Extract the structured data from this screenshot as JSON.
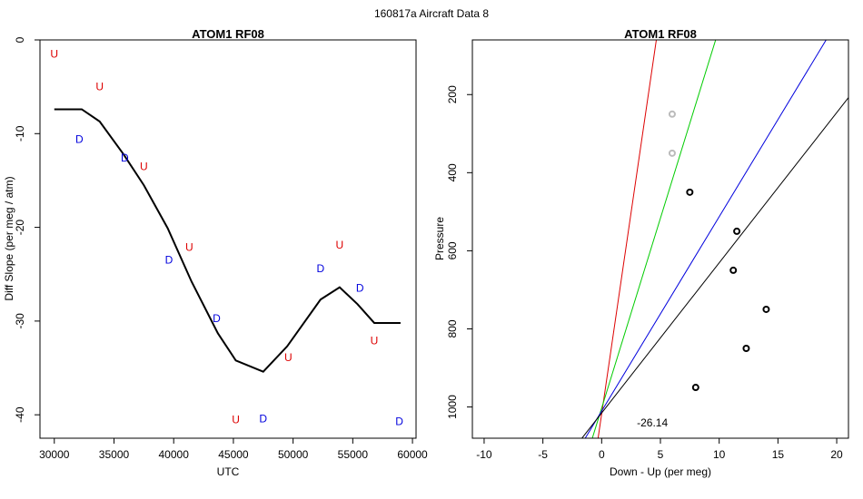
{
  "figure_title": "160817a   Aircraft Data 8",
  "chart_data": [
    {
      "type": "line",
      "title": "ATOM1 RF08",
      "xlabel": "UTC",
      "ylabel": "Diff Slope (per meg / atm)",
      "xlim": [
        28800,
        60300
      ],
      "ylim": [
        -42.5,
        0
      ],
      "xticks": [
        30000,
        35000,
        40000,
        45000,
        50000,
        55000,
        60000
      ],
      "yticks": [
        0,
        -10,
        -20,
        -30,
        -40
      ],
      "grid": false,
      "series": [
        {
          "type": "line",
          "color": "#000000",
          "x": [
            30000,
            32300,
            33800,
            35800,
            37500,
            39500,
            41500,
            43700,
            45200,
            47500,
            49500,
            52300,
            53900,
            55400,
            56800,
            59000
          ],
          "y": [
            -7.4,
            -7.4,
            -8.7,
            -12.2,
            -15.5,
            -20.1,
            -25.8,
            -31.3,
            -34.2,
            -35.4,
            -32.7,
            -27.7,
            -26.4,
            -28.2,
            -30.2,
            -30.2
          ]
        },
        {
          "type": "text-markers",
          "label": "U",
          "color": "#dd0000",
          "x": [
            30000,
            33800,
            37500,
            41300,
            45200,
            49600,
            53900,
            56800
          ],
          "y": [
            -1.5,
            -5.0,
            -13.5,
            -22.1,
            -40.5,
            -33.9,
            -21.9,
            -32.1
          ]
        },
        {
          "type": "text-markers",
          "label": "D",
          "color": "#0000dd",
          "x": [
            32100,
            35900,
            39600,
            43600,
            47500,
            52300,
            55600,
            58900
          ],
          "y": [
            -10.6,
            -12.6,
            -23.5,
            -29.7,
            -40.4,
            -24.4,
            -26.5,
            -40.7
          ]
        }
      ]
    },
    {
      "type": "scatter",
      "title": "ATOM1 RF08",
      "xlabel": "Down - Up (per meg)",
      "ylabel": "Pressure",
      "xlim": [
        -11,
        21
      ],
      "ylim": [
        1080,
        60
      ],
      "xticks": [
        -10,
        -5,
        0,
        5,
        10,
        15,
        20
      ],
      "yticks": [
        200,
        400,
        600,
        800,
        1000
      ],
      "grid": false,
      "annotation": "-26.14",
      "annotation_at": [
        3.0,
        1040
      ],
      "points": [
        {
          "x": 6.0,
          "y": 250,
          "color": "#bbbbbb"
        },
        {
          "x": 6.0,
          "y": 350,
          "color": "#bbbbbb"
        },
        {
          "x": 7.5,
          "y": 450,
          "color": "#000000"
        },
        {
          "x": 11.5,
          "y": 550,
          "color": "#000000"
        },
        {
          "x": 11.2,
          "y": 650,
          "color": "#000000"
        },
        {
          "x": 14.0,
          "y": 750,
          "color": "#000000"
        },
        {
          "x": 12.3,
          "y": 850,
          "color": "#000000"
        },
        {
          "x": 8.0,
          "y": 950,
          "color": "#000000"
        }
      ],
      "lines": [
        {
          "color": "#dd0000",
          "p1": [
            -0.4,
            1100
          ],
          "p2": [
            4.7,
            50
          ]
        },
        {
          "color": "#00cc00",
          "p1": [
            -1.0,
            1100
          ],
          "p2": [
            9.8,
            50
          ]
        },
        {
          "color": "#0000dd",
          "p1": [
            -1.8,
            1100
          ],
          "p2": [
            19.3,
            50
          ]
        },
        {
          "color": "#000000",
          "p1": [
            -2.2,
            1100
          ],
          "p2": [
            22.5,
            150
          ]
        }
      ]
    }
  ]
}
